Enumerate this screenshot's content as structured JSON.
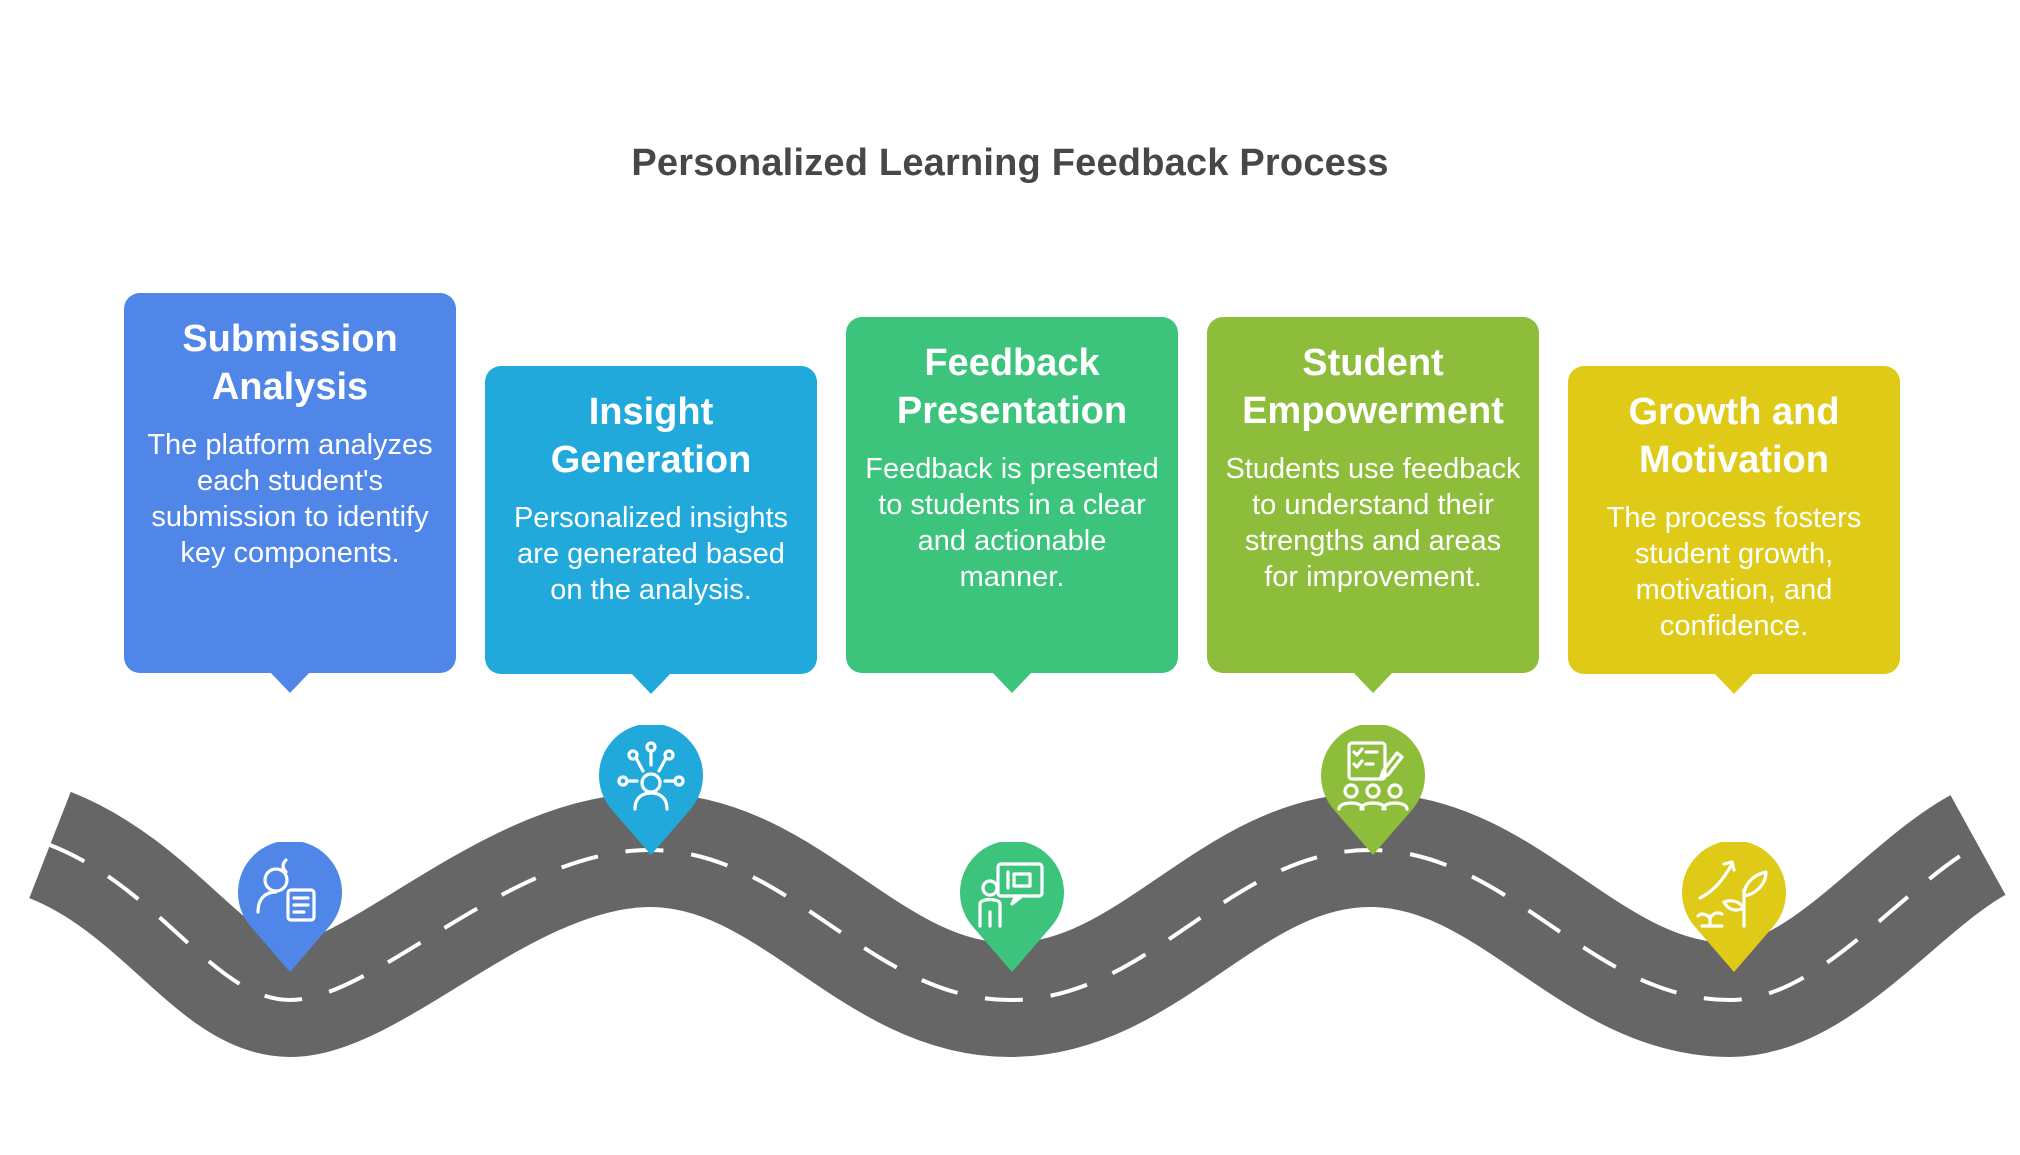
{
  "title": "Personalized Learning Feedback Process",
  "steps": [
    {
      "title": "Submission Analysis",
      "description": "The platform analyzes each student's submission to identify key components.",
      "color": "#4F86E8",
      "icon": "user-document-icon"
    },
    {
      "title": "Insight Generation",
      "description": "Personalized insights are generated based on the analysis.",
      "color": "#22A9DC",
      "icon": "network-person-icon"
    },
    {
      "title": "Feedback Presentation",
      "description": "Feedback is presented to students in a clear and actionable manner.",
      "color": "#3CC47C",
      "icon": "presentation-person-icon"
    },
    {
      "title": "Student Empowerment",
      "description": "Students use feedback to understand their strengths and areas for improvement.",
      "color": "#8DBD3A",
      "icon": "checklist-group-icon"
    },
    {
      "title": "Growth and Motivation",
      "description": "The process fosters student growth, motivation, and confidence.",
      "color": "#DFCA17",
      "icon": "growing-plant-icon"
    }
  ],
  "road_color": "#666666"
}
